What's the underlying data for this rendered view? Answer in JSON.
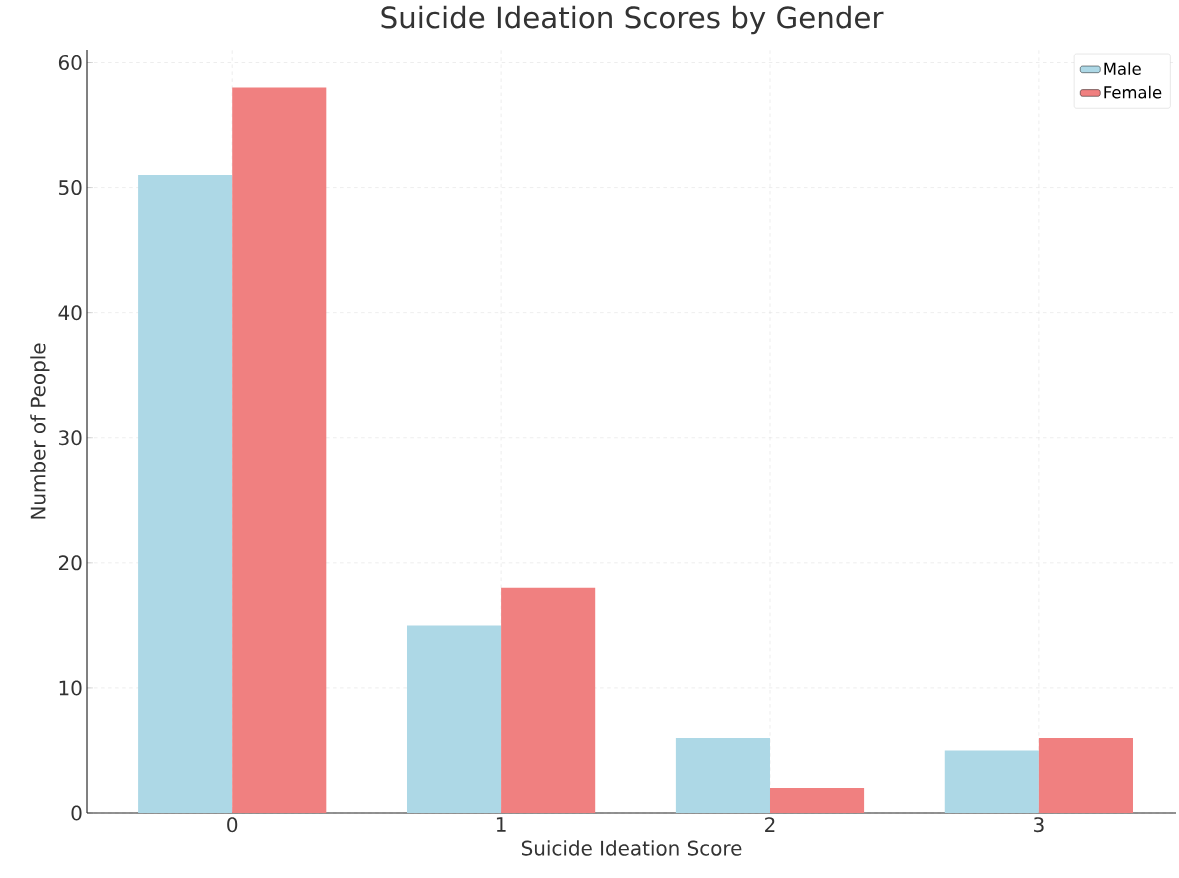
{
  "chart_data": {
    "type": "bar",
    "title": "Suicide Ideation Scores by Gender",
    "xlabel": "Suicide Ideation Score",
    "ylabel": "Number of People",
    "categories": [
      "0",
      "1",
      "2",
      "3"
    ],
    "series": [
      {
        "name": "Male",
        "color": "#add8e6",
        "values": [
          51,
          15,
          6,
          5
        ]
      },
      {
        "name": "Female",
        "color": "#f08080",
        "values": [
          58,
          18,
          2,
          6
        ]
      }
    ],
    "ylim": [
      0,
      61
    ],
    "yticks": [
      0,
      10,
      20,
      30,
      40,
      50,
      60
    ],
    "grid": true,
    "legend": "top right"
  }
}
